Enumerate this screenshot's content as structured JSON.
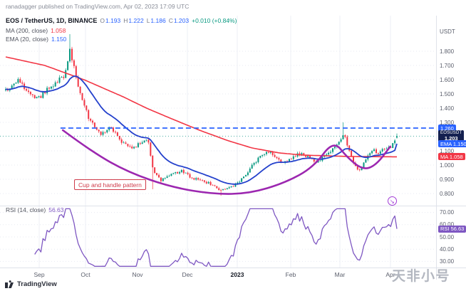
{
  "header": {
    "attribution": "ranadagger published on TradingView.com, Apr 02, 2023 17:09 UTC"
  },
  "legend": {
    "symbol": "EOS / TetherUS, 1D, BINANCE",
    "ohlc": {
      "o_label": "O",
      "o": "1.193",
      "h_label": "H",
      "h": "1.222",
      "l_label": "L",
      "l": "1.186",
      "c_label": "C",
      "c": "1.203",
      "change": "+0.010 (+0.84%)"
    },
    "ma": {
      "label": "MA (200, close)",
      "value": "1.058"
    },
    "ema": {
      "label": "EMA (20, close)",
      "value": "1.150"
    }
  },
  "annotations": {
    "pattern_label": "Cup and handle pattern"
  },
  "icons": {
    "circle_arrow": "↘"
  },
  "price_axis": {
    "currency": "USDT",
    "ticks": [
      "1.800",
      "1.700",
      "1.600",
      "1.500",
      "1.400",
      "1.300",
      "1.100",
      "1.000",
      "0.900",
      "0.800"
    ],
    "resistance_badge": {
      "text": "1.260",
      "price": 1.26
    },
    "symbol_badge": {
      "symbol": "EOSUSDT",
      "price_text": "1.203",
      "price": 1.203
    },
    "ema_badge": {
      "label": "EMA",
      "value": "1.150",
      "price": 1.15
    },
    "ma_badge": {
      "label": "MA",
      "value": "1.058",
      "price": 1.058
    }
  },
  "rsi_pane": {
    "legend_label": "RSI (14, close)",
    "legend_value": "56.63"
  },
  "rsi_axis": {
    "ticks": [
      "70.00",
      "60.00",
      "50.00",
      "40.00",
      "30.00"
    ],
    "badge": {
      "label": "RSI",
      "value": "56.63",
      "rsi": 56.63
    }
  },
  "time_axis": {
    "labels": [
      {
        "text": "Sep",
        "x": 55
      },
      {
        "text": "Oct",
        "x": 120
      },
      {
        "text": "Nov",
        "x": 193
      },
      {
        "text": "Dec",
        "x": 263
      },
      {
        "text": "2023",
        "x": 333,
        "bold": true
      },
      {
        "text": "Feb",
        "x": 408
      },
      {
        "text": "Mar",
        "x": 477
      },
      {
        "text": "Apr",
        "x": 548
      }
    ]
  },
  "footer": {
    "brand": "TradingView",
    "watermark": "天非小号"
  },
  "chart_data": {
    "type": "candlestick",
    "symbol": "EOSUSDT",
    "exchange": "BINANCE",
    "interval": "1D",
    "title": "EOS / TetherUS daily chart with MA(200), EMA(20), RSI(14) and cup-and-handle pattern",
    "pattern": "Cup and handle",
    "date_label": "Apr 02, 2023 17:09 UTC",
    "x_range": [
      "Sep 2022",
      "Apr 2023"
    ],
    "ylim": [
      0.715,
      2.05
    ],
    "last_candle": {
      "open": 1.193,
      "high": 1.222,
      "low": 1.186,
      "close": 1.203,
      "change_abs": 0.01,
      "change_pct": 0.84
    },
    "ma200_current": 1.058,
    "ema20_current": 1.15,
    "rsi_current": 56.63,
    "resistance_level": 1.26,
    "resistance_start_t": 0.14,
    "num_candles": 190,
    "rsi_range_ticks": [
      30,
      40,
      50,
      60,
      70
    ],
    "colors": {
      "up": "#089981",
      "down": "#f23645",
      "ma": "#f23645",
      "ema": "#2441cc",
      "resistance": "#2962ff",
      "cup": "#9c27b0",
      "rsi": "#7e57c2",
      "symbol_badge": "#142050"
    },
    "price_path": [
      [
        0,
        1.52
      ],
      [
        0.031,
        1.6
      ],
      [
        0.058,
        1.5
      ],
      [
        0.086,
        1.47
      ],
      [
        0.113,
        1.55
      ],
      [
        0.149,
        1.63
      ],
      [
        0.164,
        1.8
      ],
      [
        0.186,
        1.55
      ],
      [
        0.213,
        1.32
      ],
      [
        0.24,
        1.22
      ],
      [
        0.268,
        1.26
      ],
      [
        0.295,
        1.17
      ],
      [
        0.322,
        1.12
      ],
      [
        0.35,
        1.16
      ],
      [
        0.364,
        1.18
      ],
      [
        0.377,
        0.96
      ],
      [
        0.395,
        0.89
      ],
      [
        0.423,
        0.93
      ],
      [
        0.45,
        0.96
      ],
      [
        0.464,
        0.93
      ],
      [
        0.486,
        0.9
      ],
      [
        0.514,
        0.88
      ],
      [
        0.532,
        0.85
      ],
      [
        0.55,
        0.82
      ],
      [
        0.568,
        0.84
      ],
      [
        0.592,
        0.87
      ],
      [
        0.614,
        0.93
      ],
      [
        0.632,
        1.0
      ],
      [
        0.65,
        1.06
      ],
      [
        0.668,
        1.1
      ],
      [
        0.687,
        1.07
      ],
      [
        0.705,
        1.02
      ],
      [
        0.729,
        1.05
      ],
      [
        0.75,
        1.08
      ],
      [
        0.778,
        1.05
      ],
      [
        0.796,
        1.02
      ],
      [
        0.814,
        1.06
      ],
      [
        0.832,
        1.1
      ],
      [
        0.854,
        1.16
      ],
      [
        0.865,
        1.23
      ],
      [
        0.878,
        1.1
      ],
      [
        0.891,
        1.0
      ],
      [
        0.905,
        0.96
      ],
      [
        0.923,
        1.05
      ],
      [
        0.941,
        1.1
      ],
      [
        0.955,
        1.08
      ],
      [
        0.97,
        1.13
      ],
      [
        0.985,
        1.12
      ],
      [
        1,
        1.203
      ]
    ],
    "wick_overrides": [
      {
        "i": 31,
        "high": 1.92
      },
      {
        "i": 71,
        "low": 0.83
      },
      {
        "i": 104,
        "low": 0.785
      },
      {
        "i": 163,
        "high": 1.3
      }
    ],
    "ma200_path": [
      [
        0,
        1.76
      ],
      [
        0.1,
        1.7
      ],
      [
        0.2,
        1.6
      ],
      [
        0.3,
        1.48
      ],
      [
        0.36,
        1.4
      ],
      [
        0.42,
        1.33
      ],
      [
        0.5,
        1.24
      ],
      [
        0.57,
        1.17
      ],
      [
        0.63,
        1.12
      ],
      [
        0.7,
        1.085
      ],
      [
        0.76,
        1.07
      ],
      [
        0.82,
        1.065
      ],
      [
        0.88,
        1.06
      ],
      [
        1,
        1.058
      ]
    ],
    "cup_handle_path": [
      [
        0.146,
        1.245
      ],
      [
        0.222,
        1.09
      ],
      [
        0.313,
        0.95
      ],
      [
        0.423,
        0.845
      ],
      [
        0.532,
        0.795
      ],
      [
        0.623,
        0.8
      ],
      [
        0.714,
        0.875
      ],
      [
        0.787,
        0.985
      ],
      [
        0.838,
        1.175
      ],
      [
        0.874,
        1.05
      ],
      [
        0.914,
        0.965
      ],
      [
        0.947,
        1.0
      ],
      [
        0.983,
        1.13
      ]
    ]
  }
}
